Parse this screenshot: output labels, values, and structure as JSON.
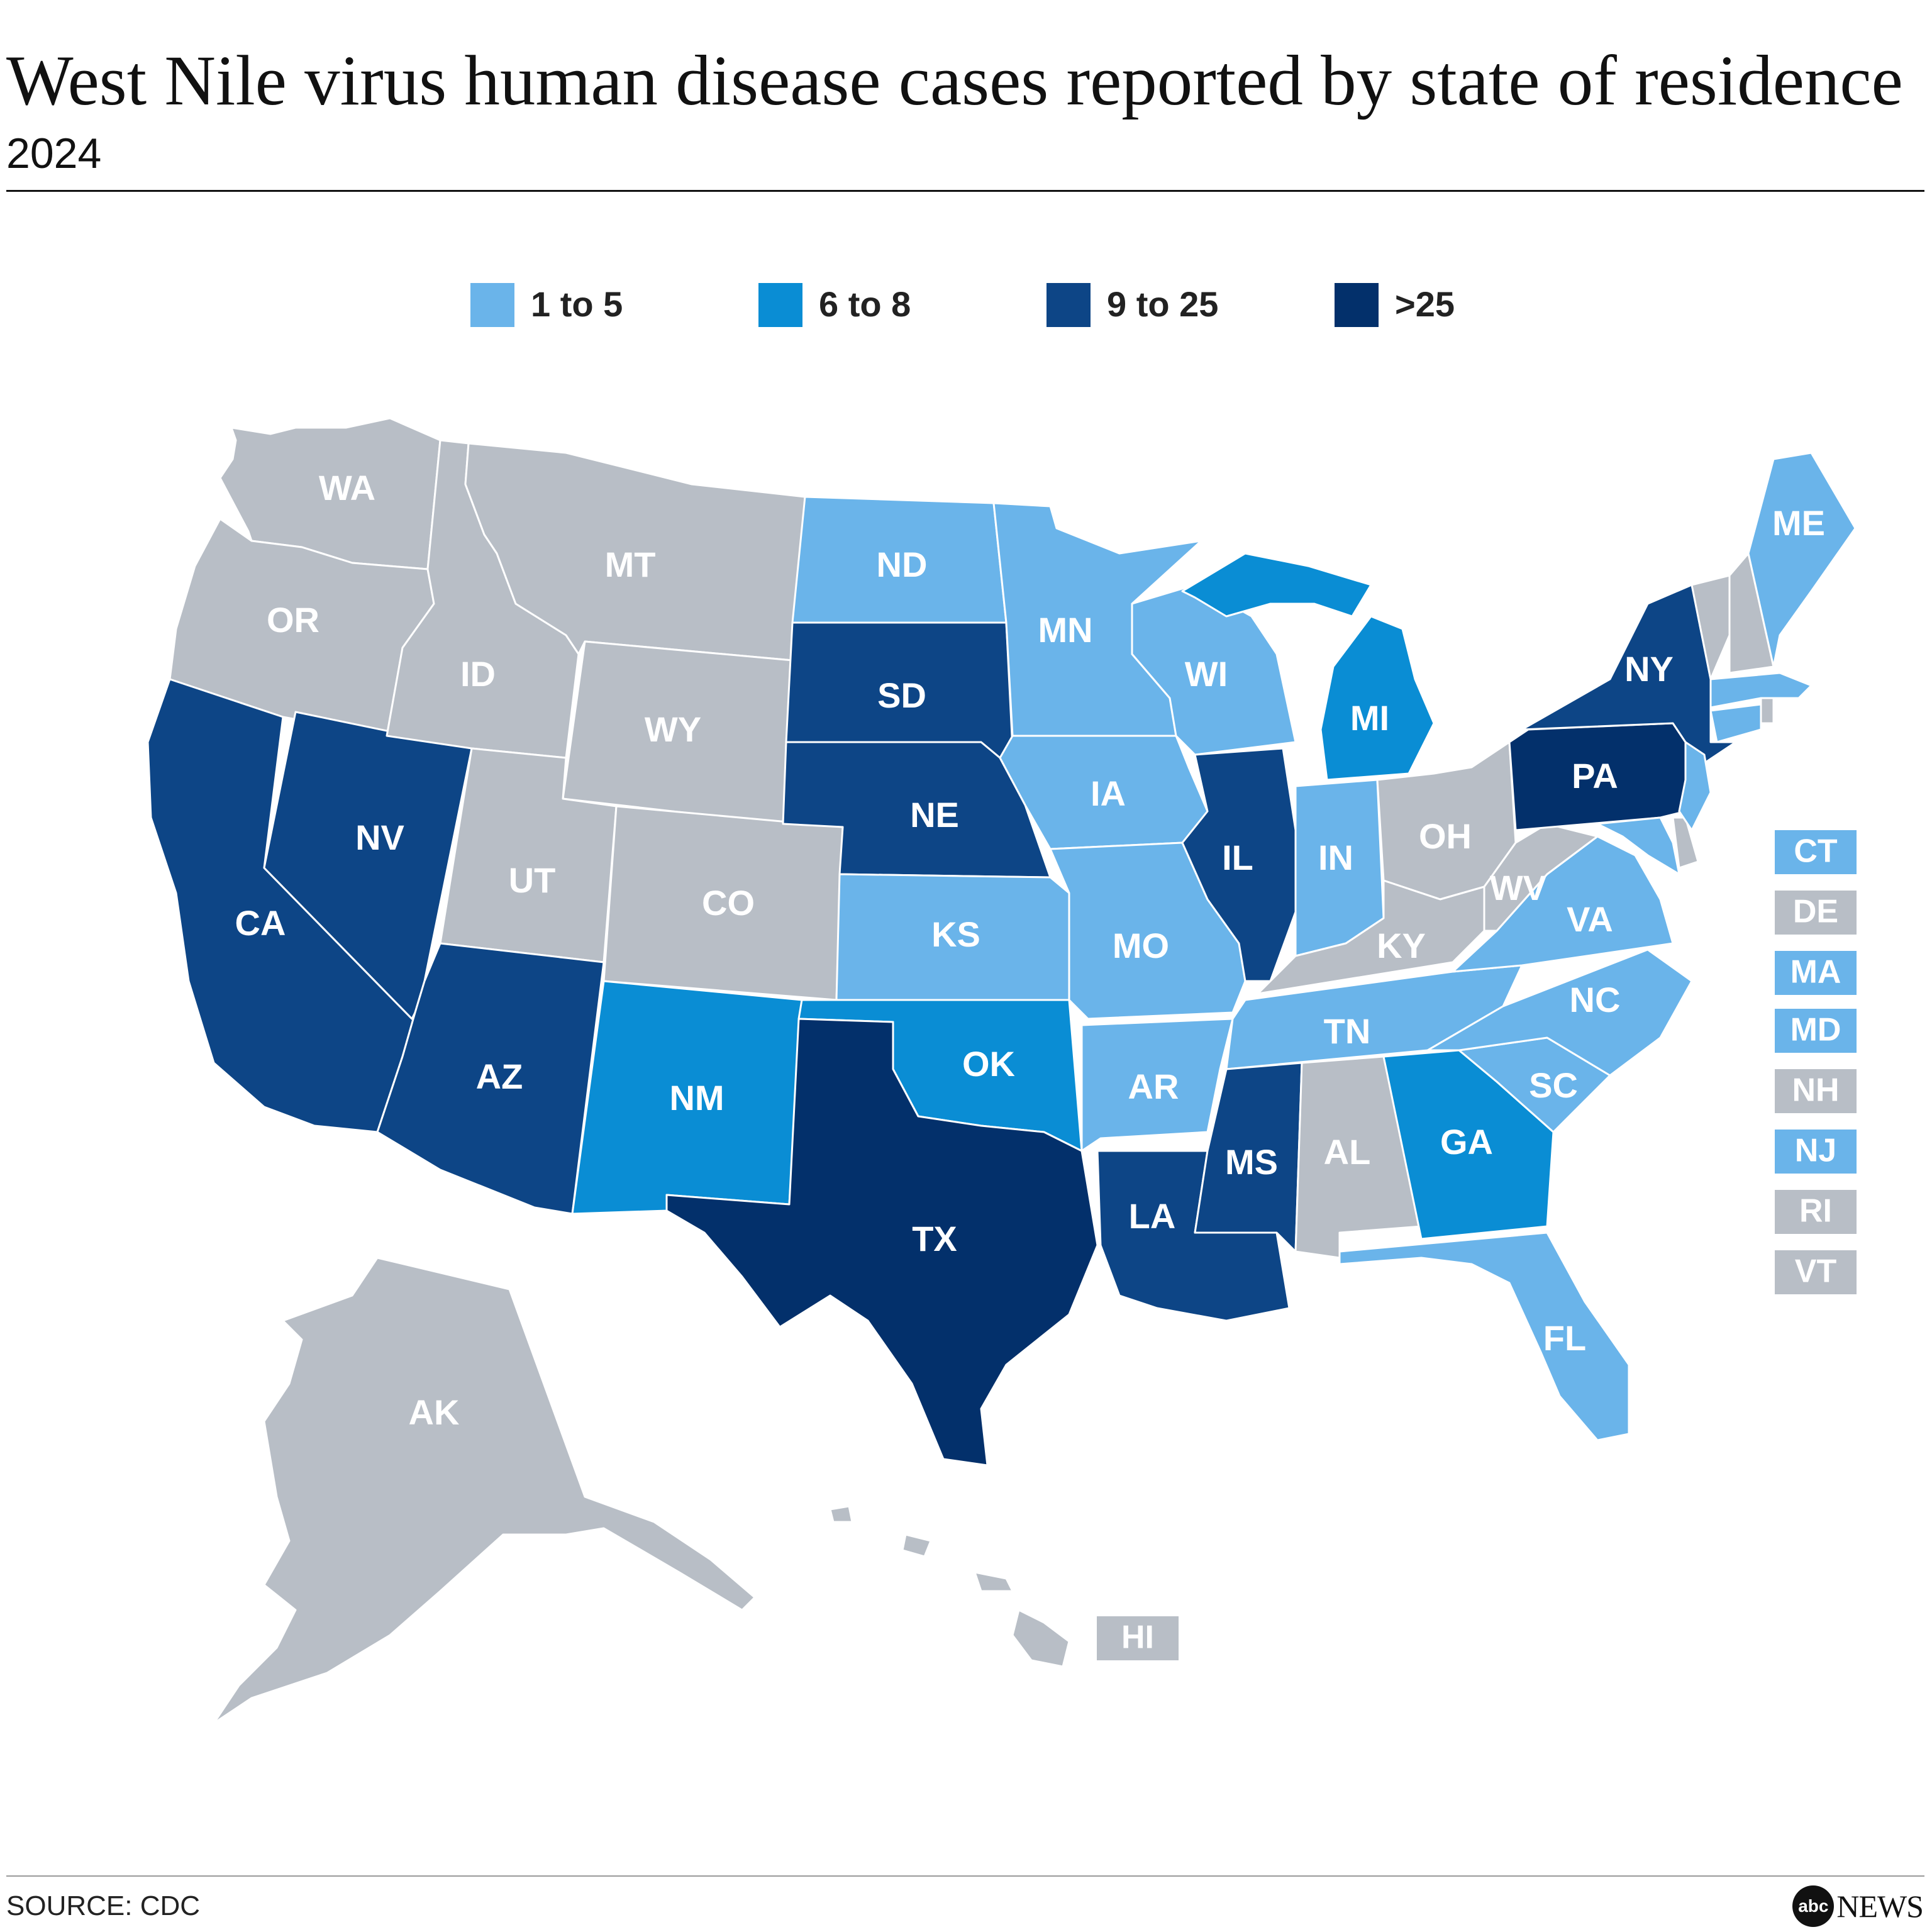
{
  "title": "West Nile virus human disease cases reported by state of residence",
  "subtitle": "2024",
  "source": "SOURCE: CDC",
  "logo": {
    "mark": "abc",
    "word": "NEWS"
  },
  "colors": {
    "none": "#b8bec6",
    "c1to5": "#6ab4ea",
    "c6to8": "#0a8dd4",
    "c9to25": "#0d4586",
    "cgt25": "#03306b",
    "label": "#ffffff"
  },
  "legend": [
    {
      "label": "1 to 5",
      "color": "#6ab4ea"
    },
    {
      "label": "6 to 8",
      "color": "#0a8dd4"
    },
    {
      "label": "9 to 25",
      "color": "#0d4586"
    },
    {
      "label": ">25",
      "color": "#03306b"
    }
  ],
  "states": {
    "WA": "none",
    "OR": "none",
    "CA": "9to25",
    "NV": "9to25",
    "ID": "none",
    "MT": "none",
    "WY": "none",
    "UT": "none",
    "CO": "none",
    "AZ": "9to25",
    "NM": "6to8",
    "ND": "1to5",
    "SD": "9to25",
    "NE": "9to25",
    "KS": "1to5",
    "OK": "6to8",
    "TX": "gt25",
    "MN": "1to5",
    "IA": "1to5",
    "MO": "1to5",
    "AR": "1to5",
    "LA": "9to25",
    "WI": "1to5",
    "IL": "9to25",
    "MI": "6to8",
    "IN": "1to5",
    "OH": "none",
    "KY": "none",
    "TN": "1to5",
    "MS": "9to25",
    "AL": "none",
    "GA": "6to8",
    "FL": "1to5",
    "SC": "1to5",
    "NC": "1to5",
    "VA": "1to5",
    "WV": "none",
    "PA": "gt25",
    "NY": "9to25",
    "ME": "1to5",
    "AK": "none",
    "HI": "none",
    "CT": "1to5",
    "DE": "none",
    "MA": "1to5",
    "MD": "1to5",
    "NH": "none",
    "NJ": "1to5",
    "RI": "none",
    "VT": "none"
  },
  "small_state_boxes": [
    "CT",
    "DE",
    "MA",
    "MD",
    "NH",
    "NJ",
    "RI",
    "VT"
  ]
}
